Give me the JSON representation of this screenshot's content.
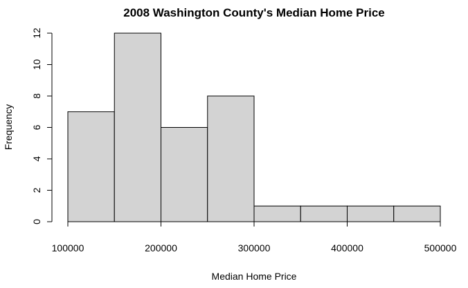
{
  "chart_data": {
    "type": "bar",
    "title": "2008 Washington County's Median Home Price",
    "xlabel": "Median Home Price",
    "ylabel": "Frequency",
    "bins": [
      {
        "start": 100000,
        "end": 150000,
        "count": 7
      },
      {
        "start": 150000,
        "end": 200000,
        "count": 12
      },
      {
        "start": 200000,
        "end": 250000,
        "count": 6
      },
      {
        "start": 250000,
        "end": 300000,
        "count": 8
      },
      {
        "start": 300000,
        "end": 350000,
        "count": 1
      },
      {
        "start": 350000,
        "end": 400000,
        "count": 1
      },
      {
        "start": 400000,
        "end": 450000,
        "count": 1
      },
      {
        "start": 450000,
        "end": 500000,
        "count": 1
      }
    ],
    "xlim": [
      100000,
      500000
    ],
    "ylim": [
      0,
      12
    ],
    "x_ticks": [
      "100000",
      "200000",
      "300000",
      "400000",
      "500000"
    ],
    "y_ticks": [
      "0",
      "2",
      "4",
      "6",
      "8",
      "10",
      "12"
    ],
    "bar_fill": "#d3d3d3",
    "bar_stroke": "#000000",
    "grid": false,
    "legend": "none"
  }
}
